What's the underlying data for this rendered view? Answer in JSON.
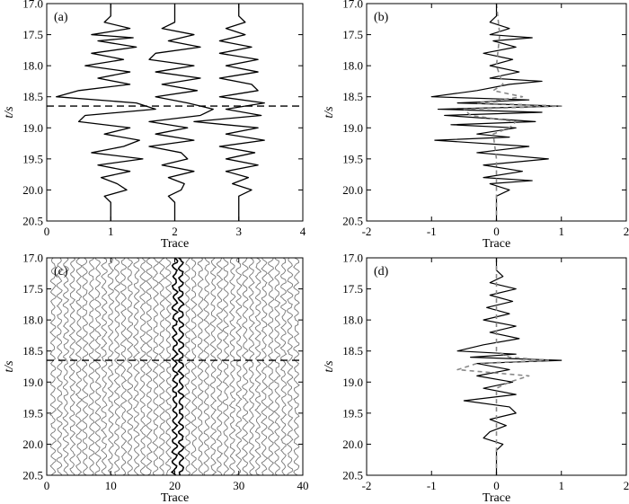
{
  "chart_data": [
    {
      "panel": "(a)",
      "type": "line",
      "xlabel": "Trace",
      "ylabel": "t/s",
      "xlim": [
        0,
        4
      ],
      "ylim": [
        20.5,
        17.0
      ],
      "xticks": [
        "0",
        "1",
        "2",
        "3",
        "4"
      ],
      "yticks": [
        "17.0",
        "17.5",
        "18.0",
        "18.5",
        "19.0",
        "19.5",
        "20.0",
        "20.5"
      ],
      "reference_line": {
        "t": 18.65,
        "style": "dashed"
      },
      "series": [
        {
          "trace": 1,
          "color": "#000000",
          "t": [
            17.0,
            17.2,
            17.3,
            17.4,
            17.5,
            17.55,
            17.6,
            17.7,
            17.8,
            17.9,
            18.0,
            18.1,
            18.2,
            18.3,
            18.4,
            18.5,
            18.6,
            18.7,
            18.8,
            18.9,
            19.0,
            19.1,
            19.2,
            19.3,
            19.4,
            19.5,
            19.6,
            19.7,
            19.8,
            19.9,
            20.0,
            20.1,
            20.2,
            20.5
          ],
          "amp": [
            0.0,
            0.0,
            -0.1,
            0.3,
            -0.3,
            0.35,
            -0.2,
            0.4,
            -0.3,
            0.2,
            -0.4,
            0.3,
            -0.2,
            0.3,
            -0.5,
            -0.85,
            0.4,
            0.7,
            -0.4,
            -0.5,
            0.3,
            -0.1,
            0.45,
            0.2,
            -0.3,
            0.5,
            -0.2,
            0.3,
            -0.15,
            0.1,
            0.25,
            -0.1,
            0.0,
            0.0
          ]
        },
        {
          "trace": 2,
          "color": "#000000",
          "t": [
            17.0,
            17.3,
            17.4,
            17.5,
            17.6,
            17.7,
            17.8,
            17.9,
            18.0,
            18.1,
            18.2,
            18.3,
            18.4,
            18.5,
            18.6,
            18.7,
            18.8,
            18.9,
            19.0,
            19.1,
            19.2,
            19.3,
            19.4,
            19.5,
            19.6,
            19.7,
            19.8,
            19.9,
            20.0,
            20.1,
            20.2,
            20.5
          ],
          "amp": [
            0.0,
            0.0,
            -0.2,
            0.3,
            -0.1,
            0.4,
            -0.3,
            -0.4,
            0.3,
            -0.3,
            0.4,
            -0.2,
            0.35,
            -0.3,
            0.2,
            0.6,
            0.4,
            -0.4,
            0.2,
            -0.3,
            0.3,
            -0.4,
            0.1,
            0.2,
            -0.2,
            0.3,
            -0.1,
            0.15,
            0.1,
            -0.1,
            0.0,
            0.0
          ]
        },
        {
          "trace": 3,
          "color": "#000000",
          "t": [
            17.0,
            17.2,
            17.3,
            17.4,
            17.5,
            17.6,
            17.7,
            17.8,
            17.9,
            18.0,
            18.1,
            18.2,
            18.3,
            18.4,
            18.5,
            18.6,
            18.7,
            18.8,
            18.9,
            19.0,
            19.1,
            19.2,
            19.3,
            19.4,
            19.5,
            19.6,
            19.7,
            19.8,
            19.9,
            20.0,
            20.1,
            20.5
          ],
          "amp": [
            0.0,
            0.0,
            0.1,
            -0.2,
            0.1,
            -0.3,
            0.2,
            -0.3,
            0.3,
            -0.2,
            0.3,
            -0.3,
            0.2,
            0.3,
            -0.3,
            0.4,
            -0.2,
            0.35,
            -0.7,
            0.3,
            -0.2,
            0.4,
            -0.3,
            0.25,
            -0.2,
            0.3,
            -0.2,
            0.15,
            -0.1,
            0.2,
            0.0,
            0.0
          ]
        }
      ]
    },
    {
      "panel": "(b)",
      "type": "line",
      "xlabel": "Trace",
      "ylabel": "t/s",
      "xlim": [
        -2,
        2
      ],
      "ylim": [
        20.5,
        17.0
      ],
      "xticks": [
        "-2",
        "-1",
        "0",
        "1",
        "2"
      ],
      "yticks": [
        "17.0",
        "17.5",
        "18.0",
        "18.5",
        "19.0",
        "19.5",
        "20.0",
        "20.5"
      ],
      "series": [
        {
          "style": "solid",
          "color": "#000000",
          "t": [
            17.0,
            17.2,
            17.3,
            17.4,
            17.5,
            17.55,
            17.6,
            17.7,
            17.8,
            17.9,
            18.0,
            18.1,
            18.2,
            18.25,
            18.3,
            18.4,
            18.5,
            18.55,
            18.6,
            18.65,
            18.7,
            18.75,
            18.8,
            18.9,
            18.95,
            19.0,
            19.1,
            19.15,
            19.2,
            19.3,
            19.4,
            19.5,
            19.6,
            19.7,
            19.8,
            19.85,
            19.9,
            20.0,
            20.1,
            20.5
          ],
          "amp": [
            0.0,
            0.0,
            -0.1,
            0.2,
            -0.1,
            0.55,
            -0.05,
            0.3,
            -0.2,
            0.25,
            -0.1,
            0.35,
            -0.1,
            0.7,
            0.2,
            -0.3,
            -1.0,
            0.5,
            -0.6,
            1.0,
            -0.9,
            0.7,
            -0.8,
            0.6,
            -0.7,
            0.3,
            -0.3,
            0.2,
            -0.95,
            0.5,
            -0.3,
            0.8,
            -0.2,
            0.4,
            -0.2,
            0.55,
            -0.1,
            0.2,
            0.0,
            0.0
          ]
        },
        {
          "style": "dashed",
          "color": "#888888",
          "t": [
            17.0,
            17.5,
            18.0,
            18.3,
            18.4,
            18.5,
            18.6,
            18.65,
            18.7,
            18.8,
            18.9,
            19.0,
            19.1,
            19.5,
            20.0,
            20.5
          ],
          "amp": [
            0.0,
            0.05,
            0.0,
            0.1,
            -0.05,
            0.4,
            -0.3,
            1.0,
            -0.5,
            -0.4,
            0.3,
            0.2,
            -0.05,
            0.0,
            0.0,
            0.0
          ]
        }
      ]
    },
    {
      "panel": "(c)",
      "type": "line",
      "xlabel": "Trace",
      "ylabel": "t/s",
      "xlim": [
        0,
        40
      ],
      "ylim": [
        20.5,
        17.0
      ],
      "xticks": [
        "0",
        "10",
        "20",
        "30",
        "40"
      ],
      "yticks": [
        "17.0",
        "17.5",
        "18.0",
        "18.5",
        "19.0",
        "19.5",
        "20.0",
        "20.5"
      ],
      "reference_line": {
        "t": 18.65,
        "style": "dashed"
      },
      "trace_count": 39,
      "highlighted_traces": [
        20,
        21
      ],
      "trace_color": "#777777",
      "highlight_color": "#000000"
    },
    {
      "panel": "(d)",
      "type": "line",
      "xlabel": "Trace",
      "ylabel": "t/s",
      "xlim": [
        -2,
        2
      ],
      "ylim": [
        20.5,
        17.0
      ],
      "xticks": [
        "-2",
        "-1",
        "0",
        "1",
        "2"
      ],
      "yticks": [
        "17.0",
        "17.5",
        "18.0",
        "18.5",
        "19.0",
        "19.5",
        "20.0",
        "20.5"
      ],
      "series": [
        {
          "style": "solid",
          "color": "#000000",
          "t": [
            17.0,
            17.2,
            17.3,
            17.4,
            17.5,
            17.6,
            17.7,
            17.8,
            17.9,
            18.0,
            18.1,
            18.2,
            18.3,
            18.4,
            18.5,
            18.55,
            18.6,
            18.65,
            18.7,
            18.8,
            18.9,
            19.0,
            19.1,
            19.2,
            19.3,
            19.4,
            19.5,
            19.6,
            19.7,
            19.8,
            19.9,
            20.0,
            20.1,
            20.5
          ],
          "amp": [
            0.0,
            0.0,
            0.1,
            -0.1,
            0.3,
            -0.1,
            0.25,
            -0.15,
            0.2,
            -0.2,
            0.3,
            -0.1,
            0.35,
            -0.2,
            -0.6,
            0.3,
            -0.4,
            1.0,
            -0.3,
            0.2,
            -0.3,
            0.25,
            -0.2,
            0.3,
            -0.5,
            0.2,
            0.3,
            -0.1,
            0.15,
            -0.1,
            -0.2,
            0.1,
            0.0,
            0.0
          ]
        },
        {
          "style": "dashed",
          "color": "#888888",
          "t": [
            17.0,
            18.5,
            18.6,
            18.65,
            18.7,
            18.8,
            18.9,
            19.0,
            19.1,
            20.5
          ],
          "amp": [
            0.0,
            0.0,
            0.2,
            0.8,
            -0.3,
            -0.6,
            0.5,
            0.2,
            0.0,
            0.0
          ]
        }
      ]
    }
  ]
}
